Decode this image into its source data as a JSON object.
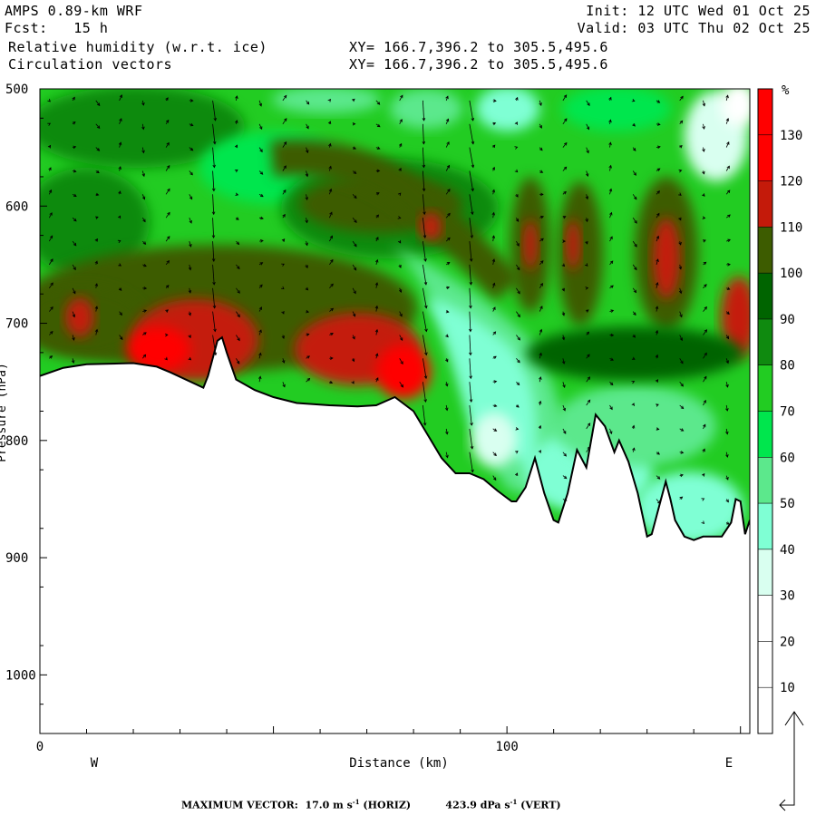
{
  "header": {
    "model": "AMPS 0.89-km WRF",
    "fcst": "Fcst:   15 h",
    "field1": "Relative humidity (w.r.t. ice)",
    "field2": "Circulation vectors",
    "init": "Init: 12 UTC Wed 01 Oct 25",
    "valid": "Valid: 03 UTC Thu 02 Oct 25",
    "xy1": "XY= 166.7,396.2 to 305.5,495.6",
    "xy2": "XY= 166.7,396.2 to 305.5,495.6"
  },
  "footer": {
    "label": "MAXIMUM VECTOR:",
    "horiz_value": "17.0",
    "horiz_unit": "m s",
    "horiz_exp": "-1",
    "horiz_tag": "(HORIZ)",
    "vert_value": "423.9",
    "vert_unit": "dPa s",
    "vert_exp": "-1",
    "vert_tag": "(VERT)"
  },
  "chart_data": {
    "type": "heatmap",
    "title": "Relative humidity (w.r.t. ice)",
    "overlay": "Circulation vectors",
    "xlabel": "Distance (km)",
    "ylabel": "Pressure (hPa)",
    "xlim": [
      0,
      152
    ],
    "ylim": [
      1050,
      500
    ],
    "y_inverted": true,
    "x_ticks": [
      0,
      100
    ],
    "y_ticks": [
      500,
      600,
      700,
      800,
      900,
      1000
    ],
    "x_end_labels": [
      "W",
      "E"
    ],
    "colorbar": {
      "unit": "%",
      "levels": [
        10,
        20,
        30,
        40,
        50,
        60,
        70,
        80,
        90,
        100,
        110,
        120,
        130
      ],
      "colors": [
        "#ffffff",
        "#ffffff",
        "#ffffff",
        "#d9fff0",
        "#7fffd4",
        "#5ce88c",
        "#00e64d",
        "#22cc22",
        "#0f8a0f",
        "#006400",
        "#3d5c00",
        "#c41a0a",
        "#ff0000",
        "#ff0000"
      ]
    },
    "terrain_hPa": [
      [
        0,
        745
      ],
      [
        5,
        738
      ],
      [
        10,
        735
      ],
      [
        20,
        734
      ],
      [
        25,
        737
      ],
      [
        28,
        742
      ],
      [
        35,
        755
      ],
      [
        36,
        745
      ],
      [
        38,
        715
      ],
      [
        39,
        712
      ],
      [
        40,
        725
      ],
      [
        42,
        748
      ],
      [
        46,
        757
      ],
      [
        50,
        763
      ],
      [
        55,
        768
      ],
      [
        62,
        770
      ],
      [
        68,
        771
      ],
      [
        72,
        770
      ],
      [
        76,
        763
      ],
      [
        80,
        775
      ],
      [
        83,
        795
      ],
      [
        86,
        815
      ],
      [
        89,
        828
      ],
      [
        92,
        828
      ],
      [
        95,
        833
      ],
      [
        98,
        843
      ],
      [
        101,
        852
      ],
      [
        102,
        852
      ],
      [
        104,
        840
      ],
      [
        106,
        815
      ],
      [
        108,
        845
      ],
      [
        110,
        868
      ],
      [
        111,
        870
      ],
      [
        113,
        845
      ],
      [
        115,
        808
      ],
      [
        117,
        823
      ],
      [
        119,
        778
      ],
      [
        121,
        788
      ],
      [
        123,
        810
      ],
      [
        124,
        800
      ],
      [
        126,
        818
      ],
      [
        128,
        845
      ],
      [
        130,
        882
      ],
      [
        131,
        880
      ],
      [
        133,
        850
      ],
      [
        134,
        835
      ],
      [
        135,
        850
      ],
      [
        136,
        868
      ],
      [
        138,
        882
      ],
      [
        140,
        885
      ],
      [
        142,
        882
      ],
      [
        144,
        882
      ],
      [
        146,
        882
      ],
      [
        148,
        870
      ],
      [
        149,
        850
      ],
      [
        150,
        852
      ],
      [
        151,
        880
      ],
      [
        152,
        868
      ]
    ],
    "max_vector": {
      "horiz": "17.0 m s-1",
      "vert": "423.9 dPa s-1"
    }
  }
}
